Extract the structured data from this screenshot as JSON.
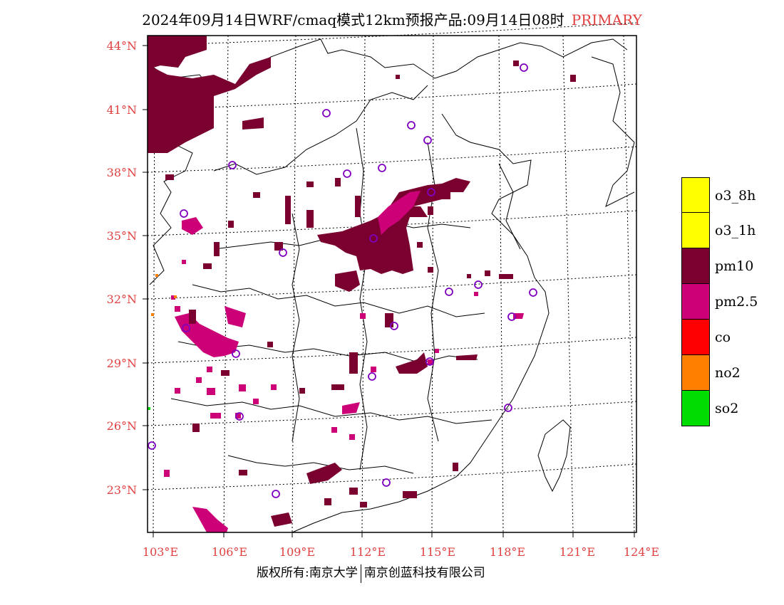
{
  "title": {
    "main": "2024年09月14日WRF/cmaq模式12km预报产品:09月14日08时",
    "tag": "PRIMARY"
  },
  "axes": {
    "lat_labels": [
      "44°N",
      "41°N",
      "38°N",
      "35°N",
      "32°N",
      "29°N",
      "26°N",
      "23°N"
    ],
    "lon_labels": [
      "103°E",
      "106°E",
      "109°E",
      "112°E",
      "115°E",
      "118°E",
      "121°E",
      "124°E"
    ]
  },
  "legend": [
    {
      "label": "o3_8h",
      "color": "#ffff00"
    },
    {
      "label": "o3_1h",
      "color": "#ffff00"
    },
    {
      "label": "pm10",
      "color": "#7a0030"
    },
    {
      "label": "pm2.5",
      "color": "#cc0077"
    },
    {
      "label": "co",
      "color": "#ff0000"
    },
    {
      "label": "no2",
      "color": "#ff7f00"
    },
    {
      "label": "so2",
      "color": "#00dd00"
    }
  ],
  "colors": {
    "axis_label": "#e04040",
    "station": "#8000c0"
  },
  "footer": {
    "left": "版权所有:南京大学",
    "right": "南京创蓝科技有限公司"
  }
}
